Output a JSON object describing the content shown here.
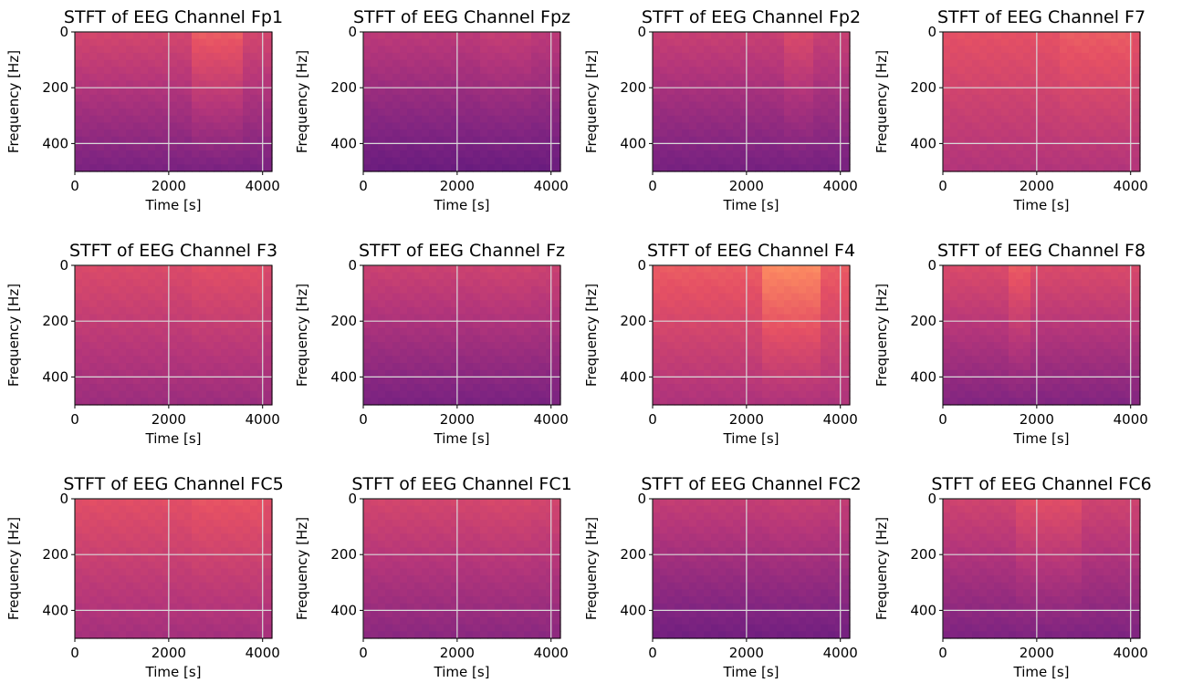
{
  "figure": {
    "background": "#ffffff"
  },
  "chart_data": [
    {
      "type": "heatmap",
      "title": "STFT of EEG Channel Fp1",
      "xlabel": "Time [s]",
      "ylabel": "Frequency [Hz]",
      "xlim": [
        0,
        4200
      ],
      "ylim": [
        500,
        0
      ],
      "x_ticks": [
        0,
        2000,
        4000
      ],
      "y_ticks": [
        0,
        200,
        400
      ],
      "grid": true,
      "colormap": "magma",
      "intensity": {
        "base": 0.58,
        "row_falloff": 0.22,
        "late_band": [
          2500,
          3500
        ],
        "late_boost": 0.08
      }
    },
    {
      "type": "heatmap",
      "title": "STFT of EEG Channel Fpz",
      "xlabel": "Time [s]",
      "ylabel": "Frequency [Hz]",
      "xlim": [
        0,
        4200
      ],
      "ylim": [
        500,
        0
      ],
      "x_ticks": [
        0,
        2000,
        4000
      ],
      "y_ticks": [
        0,
        200,
        400
      ],
      "grid": true,
      "colormap": "magma",
      "intensity": {
        "base": 0.52,
        "row_falloff": 0.2,
        "late_band": [
          2500,
          3500
        ],
        "late_boost": 0.02
      }
    },
    {
      "type": "heatmap",
      "title": "STFT of EEG Channel Fp2",
      "xlabel": "Time [s]",
      "ylabel": "Frequency [Hz]",
      "xlim": [
        0,
        4200
      ],
      "ylim": [
        500,
        0
      ],
      "x_ticks": [
        0,
        2000,
        4000
      ],
      "y_ticks": [
        0,
        200,
        400
      ],
      "grid": true,
      "colormap": "magma",
      "intensity": {
        "base": 0.55,
        "row_falloff": 0.2,
        "late_band": [
          2800,
          3400
        ],
        "late_boost": 0.05
      }
    },
    {
      "type": "heatmap",
      "title": "STFT of EEG Channel F7",
      "xlabel": "Time [s]",
      "ylabel": "Frequency [Hz]",
      "xlim": [
        0,
        4200
      ],
      "ylim": [
        500,
        0
      ],
      "x_ticks": [
        0,
        2000,
        4000
      ],
      "y_ticks": [
        0,
        200,
        400
      ],
      "grid": true,
      "colormap": "magma",
      "intensity": {
        "base": 0.63,
        "row_falloff": 0.14,
        "late_band": [
          2500,
          4000
        ],
        "late_boost": 0.03
      }
    },
    {
      "type": "heatmap",
      "title": "STFT of EEG Channel F3",
      "xlabel": "Time [s]",
      "ylabel": "Frequency [Hz]",
      "xlim": [
        0,
        4200
      ],
      "ylim": [
        500,
        0
      ],
      "x_ticks": [
        0,
        2000,
        4000
      ],
      "y_ticks": [
        0,
        200,
        400
      ],
      "grid": true,
      "colormap": "magma",
      "intensity": {
        "base": 0.6,
        "row_falloff": 0.16,
        "late_band": [
          2500,
          4000
        ],
        "late_boost": 0.02
      }
    },
    {
      "type": "heatmap",
      "title": "STFT of EEG Channel Fz",
      "xlabel": "Time [s]",
      "ylabel": "Frequency [Hz]",
      "xlim": [
        0,
        4200
      ],
      "ylim": [
        500,
        0
      ],
      "x_ticks": [
        0,
        2000,
        4000
      ],
      "y_ticks": [
        0,
        200,
        400
      ],
      "grid": true,
      "colormap": "magma",
      "intensity": {
        "base": 0.56,
        "row_falloff": 0.2,
        "late_band": [
          2500,
          3500
        ],
        "late_boost": 0.01
      }
    },
    {
      "type": "heatmap",
      "title": "STFT of EEG Channel F4",
      "xlabel": "Time [s]",
      "ylabel": "Frequency [Hz]",
      "xlim": [
        0,
        4200
      ],
      "ylim": [
        500,
        0
      ],
      "x_ticks": [
        0,
        2000,
        4000
      ],
      "y_ticks": [
        0,
        200,
        400
      ],
      "grid": true,
      "colormap": "magma",
      "intensity": {
        "base": 0.66,
        "row_falloff": 0.18,
        "late_band": [
          2400,
          3600
        ],
        "late_boost": 0.1
      }
    },
    {
      "type": "heatmap",
      "title": "STFT of EEG Channel F8",
      "xlabel": "Time [s]",
      "ylabel": "Frequency [Hz]",
      "xlim": [
        0,
        4200
      ],
      "ylim": [
        500,
        0
      ],
      "x_ticks": [
        0,
        2000,
        4000
      ],
      "y_ticks": [
        0,
        200,
        400
      ],
      "grid": true,
      "colormap": "magma",
      "intensity": {
        "base": 0.6,
        "row_falloff": 0.22,
        "late_band": [
          1400,
          1800
        ],
        "late_boost": 0.06
      }
    },
    {
      "type": "heatmap",
      "title": "STFT of EEG Channel FC5",
      "xlabel": "Time [s]",
      "ylabel": "Frequency [Hz]",
      "xlim": [
        0,
        4200
      ],
      "ylim": [
        500,
        0
      ],
      "x_ticks": [
        0,
        2000,
        4000
      ],
      "y_ticks": [
        0,
        200,
        400
      ],
      "grid": true,
      "colormap": "magma",
      "intensity": {
        "base": 0.62,
        "row_falloff": 0.16,
        "late_band": [
          2500,
          4000
        ],
        "late_boost": 0.02
      }
    },
    {
      "type": "heatmap",
      "title": "STFT of EEG Channel FC1",
      "xlabel": "Time [s]",
      "ylabel": "Frequency [Hz]",
      "xlim": [
        0,
        4200
      ],
      "ylim": [
        500,
        0
      ],
      "x_ticks": [
        0,
        2000,
        4000
      ],
      "y_ticks": [
        0,
        200,
        400
      ],
      "grid": true,
      "colormap": "magma",
      "intensity": {
        "base": 0.58,
        "row_falloff": 0.18,
        "late_band": [
          2500,
          3500
        ],
        "late_boost": 0.01
      }
    },
    {
      "type": "heatmap",
      "title": "STFT of EEG Channel FC2",
      "xlabel": "Time [s]",
      "ylabel": "Frequency [Hz]",
      "xlim": [
        0,
        4200
      ],
      "ylim": [
        500,
        0
      ],
      "x_ticks": [
        0,
        2000,
        4000
      ],
      "y_ticks": [
        0,
        200,
        400
      ],
      "grid": true,
      "colormap": "magma",
      "intensity": {
        "base": 0.54,
        "row_falloff": 0.2,
        "late_band": [
          2500,
          3500
        ],
        "late_boost": 0.01
      }
    },
    {
      "type": "heatmap",
      "title": "STFT of EEG Channel FC6",
      "xlabel": "Time [s]",
      "ylabel": "Frequency [Hz]",
      "xlim": [
        0,
        4200
      ],
      "ylim": [
        500,
        0
      ],
      "x_ticks": [
        0,
        2000,
        4000
      ],
      "y_ticks": [
        0,
        200,
        400
      ],
      "grid": true,
      "colormap": "magma",
      "intensity": {
        "base": 0.57,
        "row_falloff": 0.2,
        "late_band": [
          1500,
          3000
        ],
        "late_boost": 0.05
      }
    }
  ]
}
